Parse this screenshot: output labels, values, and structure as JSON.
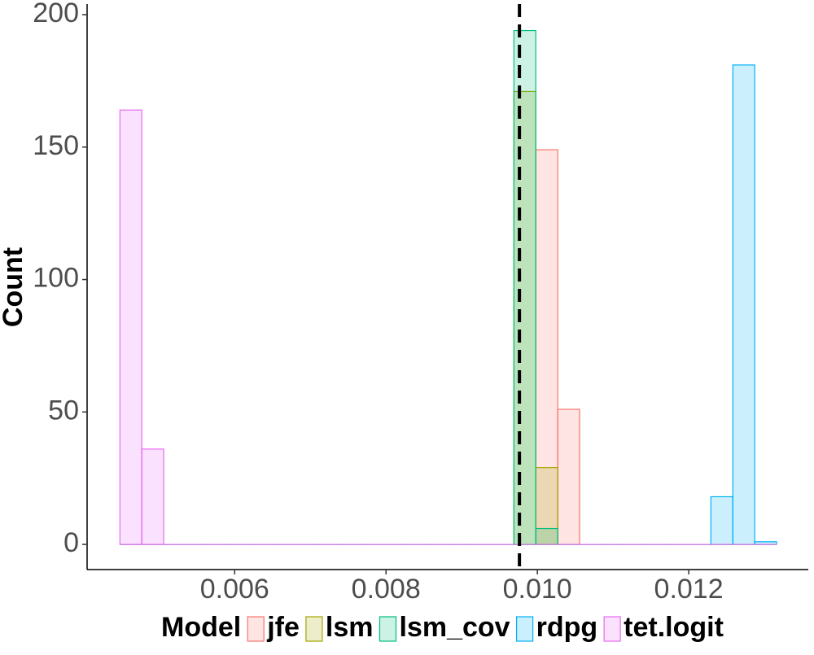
{
  "chart_data": {
    "type": "histogram",
    "y_label": "Count",
    "legend_title": "Model",
    "legend_position": "bottom",
    "bins": [
      0.004484,
      0.004773,
      0.005062,
      0.005352,
      0.005641,
      0.00593,
      0.006219,
      0.006509,
      0.006798,
      0.007087,
      0.007376,
      0.007666,
      0.007955,
      0.008244,
      0.008533,
      0.008822,
      0.009112,
      0.009401,
      0.00969,
      0.009979,
      0.010269,
      0.010558,
      0.010847,
      0.011136,
      0.011426,
      0.011715,
      0.012004,
      0.012293,
      0.012583,
      0.012872,
      0.013161
    ],
    "series": [
      {
        "name": "jfe",
        "color": "#F8766D",
        "values": [
          0,
          0,
          0,
          0,
          0,
          0,
          0,
          0,
          0,
          0,
          0,
          0,
          0,
          0,
          0,
          0,
          0,
          0,
          0,
          149,
          51,
          0,
          0,
          0,
          0,
          0,
          0,
          0,
          0,
          0
        ]
      },
      {
        "name": "lsm",
        "color": "#A3A500",
        "values": [
          0,
          0,
          0,
          0,
          0,
          0,
          0,
          0,
          0,
          0,
          0,
          0,
          0,
          0,
          0,
          0,
          0,
          0,
          171,
          29,
          0,
          0,
          0,
          0,
          0,
          0,
          0,
          0,
          0,
          0
        ]
      },
      {
        "name": "lsm_cov",
        "color": "#00BF7D",
        "values": [
          0,
          0,
          0,
          0,
          0,
          0,
          0,
          0,
          0,
          0,
          0,
          0,
          0,
          0,
          0,
          0,
          0,
          0,
          194,
          6,
          0,
          0,
          0,
          0,
          0,
          0,
          0,
          0,
          0,
          0
        ]
      },
      {
        "name": "rdpg",
        "color": "#00B0F6",
        "values": [
          0,
          0,
          0,
          0,
          0,
          0,
          0,
          0,
          0,
          0,
          0,
          0,
          0,
          0,
          0,
          0,
          0,
          0,
          0,
          0,
          0,
          0,
          0,
          0,
          0,
          0,
          0,
          18,
          181,
          1
        ]
      },
      {
        "name": "tet.logit",
        "color": "#E76BF3",
        "values": [
          164,
          36,
          0,
          0,
          0,
          0,
          0,
          0,
          0,
          0,
          0,
          0,
          0,
          0,
          0,
          0,
          0,
          0,
          0,
          0,
          0,
          0,
          0,
          0,
          0,
          0,
          0,
          0,
          0,
          0
        ]
      }
    ],
    "vline": 0.009763,
    "xlim": [
      0.00405,
      0.01358
    ],
    "ylim": [
      -9.5,
      204
    ],
    "xticks": [
      0.006,
      0.008,
      {
        "value": 0.01,
        "label": "0.010"
      },
      0.012
    ],
    "yticks": [
      0,
      50,
      100,
      150,
      200
    ],
    "grid": false
  }
}
